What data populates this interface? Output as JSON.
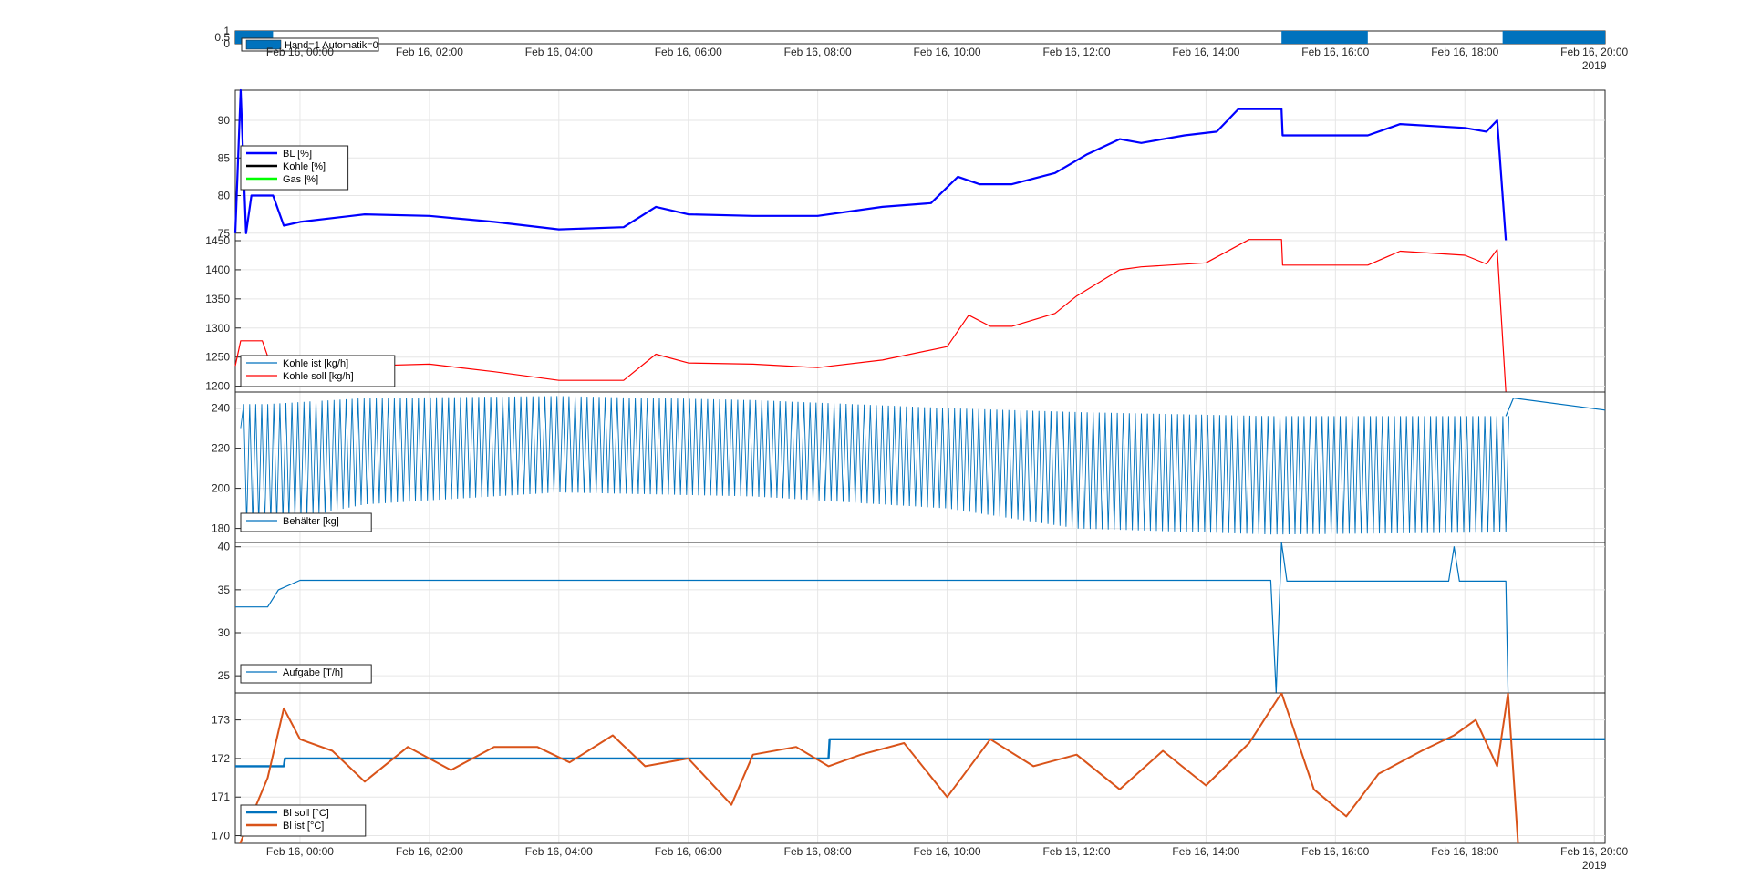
{
  "chart_data": [
    {
      "type": "area",
      "panel": "mode",
      "x_range": [
        "Feb 15, 23:00",
        "Feb 16, 20:10"
      ],
      "ylim": [
        0,
        1
      ],
      "y_ticks": [
        0,
        0.5,
        1
      ],
      "y_tick_labels": [
        "0",
        "0.5",
        "1"
      ],
      "x_tick_labels": [
        "Feb 16, 00:00",
        "Feb 16, 02:00",
        "Feb 16, 04:00",
        "Feb 16, 06:00",
        "Feb 16, 08:00",
        "Feb 16, 10:00",
        "Feb 16, 12:00",
        "Feb 16, 14:00",
        "Feb 16, 16:00",
        "Feb 16, 18:00",
        "Feb 16, 20:00"
      ],
      "x_year": "2019",
      "legend_location": "top-left",
      "series": [
        {
          "name": "Hand=1 Automatik=0",
          "color": "#0072BD",
          "on_intervals": [
            [
              "Feb 15, 23:00",
              "Feb 15, 23:35"
            ],
            [
              "Feb 16, 15:10",
              "Feb 16, 16:30"
            ],
            [
              "Feb 16, 18:35",
              "Feb 16, 20:10"
            ]
          ]
        }
      ]
    },
    {
      "type": "line",
      "panel": "percent",
      "ylim": [
        74,
        94
      ],
      "y_ticks": [
        75,
        80,
        85,
        90
      ],
      "grid": true,
      "legend_location": "left",
      "series": [
        {
          "name": "BL [%]",
          "color": "#0000FF",
          "points": [
            [
              "Feb 15, 23:00",
              75
            ],
            [
              "Feb 15, 23:05",
              94
            ],
            [
              "Feb 15, 23:10",
              75
            ],
            [
              "Feb 15, 23:15",
              80
            ],
            [
              "Feb 15, 23:35",
              80
            ],
            [
              "Feb 15, 23:45",
              76
            ],
            [
              "Feb 16, 00:00",
              76.5
            ],
            [
              "Feb 16, 01:00",
              77.5
            ],
            [
              "Feb 16, 02:00",
              77.3
            ],
            [
              "Feb 16, 03:00",
              76.5
            ],
            [
              "Feb 16, 04:00",
              75.5
            ],
            [
              "Feb 16, 05:00",
              75.8
            ],
            [
              "Feb 16, 05:30",
              78.5
            ],
            [
              "Feb 16, 06:00",
              77.5
            ],
            [
              "Feb 16, 07:00",
              77.3
            ],
            [
              "Feb 16, 08:00",
              77.3
            ],
            [
              "Feb 16, 09:00",
              78.5
            ],
            [
              "Feb 16, 09:45",
              79.0
            ],
            [
              "Feb 16, 10:10",
              82.5
            ],
            [
              "Feb 16, 10:30",
              81.5
            ],
            [
              "Feb 16, 11:00",
              81.5
            ],
            [
              "Feb 16, 11:40",
              83
            ],
            [
              "Feb 16, 12:10",
              85.5
            ],
            [
              "Feb 16, 12:40",
              87.5
            ],
            [
              "Feb 16, 13:00",
              87.0
            ],
            [
              "Feb 16, 13:40",
              88.0
            ],
            [
              "Feb 16, 14:10",
              88.5
            ],
            [
              "Feb 16, 14:30",
              91.5
            ],
            [
              "Feb 16, 15:10",
              91.5
            ],
            [
              "Feb 16, 15:11",
              88.0
            ],
            [
              "Feb 16, 16:30",
              88.0
            ],
            [
              "Feb 16, 17:00",
              89.5
            ],
            [
              "Feb 16, 18:00",
              89.0
            ],
            [
              "Feb 16, 18:20",
              88.5
            ],
            [
              "Feb 16, 18:30",
              90.0
            ],
            [
              "Feb 16, 18:38",
              74
            ]
          ]
        },
        {
          "name": "Kohle [%]",
          "color": "#000000",
          "points": []
        },
        {
          "name": "Gas [%]",
          "color": "#00FF00",
          "points": []
        }
      ]
    },
    {
      "type": "line",
      "panel": "kohle",
      "ylim": [
        1190,
        1450
      ],
      "y_ticks": [
        1200,
        1250,
        1300,
        1350,
        1400,
        1450
      ],
      "grid": true,
      "legend_location": "bottom-left",
      "series": [
        {
          "name": "Kohle ist [kg/h]",
          "color": "#0072BD",
          "points": []
        },
        {
          "name": "Kohle soll [kg/h]",
          "color": "#FF0000",
          "points": [
            [
              "Feb 15, 23:00",
              1235
            ],
            [
              "Feb 15, 23:05",
              1278
            ],
            [
              "Feb 15, 23:25",
              1278
            ],
            [
              "Feb 15, 23:35",
              1225
            ],
            [
              "Feb 16, 00:00",
              1228
            ],
            [
              "Feb 16, 00:30",
              1242
            ],
            [
              "Feb 16, 01:00",
              1235
            ],
            [
              "Feb 16, 02:00",
              1238
            ],
            [
              "Feb 16, 03:00",
              1225
            ],
            [
              "Feb 16, 04:00",
              1210
            ],
            [
              "Feb 16, 05:00",
              1210
            ],
            [
              "Feb 16, 05:30",
              1255
            ],
            [
              "Feb 16, 06:00",
              1240
            ],
            [
              "Feb 16, 07:00",
              1238
            ],
            [
              "Feb 16, 08:00",
              1232
            ],
            [
              "Feb 16, 09:00",
              1245
            ],
            [
              "Feb 16, 10:00",
              1268
            ],
            [
              "Feb 16, 10:20",
              1322
            ],
            [
              "Feb 16, 10:40",
              1303
            ],
            [
              "Feb 16, 11:00",
              1303
            ],
            [
              "Feb 16, 11:40",
              1325
            ],
            [
              "Feb 16, 12:00",
              1355
            ],
            [
              "Feb 16, 12:40",
              1400
            ],
            [
              "Feb 16, 13:00",
              1405
            ],
            [
              "Feb 16, 14:00",
              1412
            ],
            [
              "Feb 16, 14:40",
              1452
            ],
            [
              "Feb 16, 15:10",
              1452
            ],
            [
              "Feb 16, 15:11",
              1408
            ],
            [
              "Feb 16, 16:30",
              1408
            ],
            [
              "Feb 16, 17:00",
              1432
            ],
            [
              "Feb 16, 18:00",
              1425
            ],
            [
              "Feb 16, 18:20",
              1410
            ],
            [
              "Feb 16, 18:30",
              1435
            ],
            [
              "Feb 16, 18:38",
              1190
            ]
          ]
        }
      ]
    },
    {
      "type": "line",
      "panel": "behaelter",
      "ylim": [
        173,
        248
      ],
      "y_ticks": [
        180,
        200,
        220,
        240
      ],
      "grid": true,
      "legend_location": "bottom-left",
      "series": [
        {
          "name": "Behälter [kg]",
          "color": "#0072BD",
          "oscillation_envelope": [
            [
              "Feb 15, 23:30",
              182,
              242
            ],
            [
              "Feb 16, 01:00",
              192,
              245
            ],
            [
              "Feb 16, 04:00",
              198,
              246
            ],
            [
              "Feb 16, 07:00",
              196,
              244
            ],
            [
              "Feb 16, 10:00",
              190,
              240
            ],
            [
              "Feb 16, 12:00",
              180,
              238
            ],
            [
              "Feb 16, 15:00",
              177,
              236
            ],
            [
              "Feb 16, 18:30",
              178,
              236
            ]
          ],
          "tail": [
            [
              "Feb 16, 18:38",
              236
            ],
            [
              "Feb 16, 18:45",
              245
            ],
            [
              "Feb 16, 20:10",
              239
            ]
          ]
        }
      ]
    },
    {
      "type": "line",
      "panel": "aufgabe",
      "ylim": [
        23,
        40.5
      ],
      "y_ticks": [
        25,
        30,
        35,
        40
      ],
      "grid": true,
      "legend_location": "bottom-left",
      "series": [
        {
          "name": "Aufgabe [T/h]",
          "color": "#0072BD",
          "points": [
            [
              "Feb 15, 23:00",
              33
            ],
            [
              "Feb 15, 23:30",
              33
            ],
            [
              "Feb 15, 23:40",
              35
            ],
            [
              "Feb 16, 00:00",
              36.1
            ],
            [
              "Feb 16, 15:00",
              36.1
            ],
            [
              "Feb 16, 15:05",
              23
            ],
            [
              "Feb 16, 15:10",
              40.5
            ],
            [
              "Feb 16, 15:15",
              36.0
            ],
            [
              "Feb 16, 17:45",
              36.0
            ],
            [
              "Feb 16, 17:50",
              40
            ],
            [
              "Feb 16, 17:55",
              36.0
            ],
            [
              "Feb 16, 18:38",
              36.0
            ],
            [
              "Feb 16, 18:40",
              23
            ]
          ]
        }
      ]
    },
    {
      "type": "line",
      "panel": "bl_temp",
      "ylim": [
        169.8,
        173.7
      ],
      "y_ticks": [
        170,
        171,
        172,
        173
      ],
      "grid": true,
      "legend_location": "bottom-left",
      "series": [
        {
          "name": "Bl soll [°C]",
          "color": "#0072BD",
          "points": [
            [
              "Feb 15, 23:00",
              171.8
            ],
            [
              "Feb 15, 23:45",
              171.8
            ],
            [
              "Feb 15, 23:46",
              172.0
            ],
            [
              "Feb 16, 08:10",
              172.0
            ],
            [
              "Feb 16, 08:11",
              172.5
            ],
            [
              "Feb 16, 20:10",
              172.5
            ]
          ]
        },
        {
          "name": "Bl ist [°C]",
          "color": "#D95319",
          "points": [
            [
              "Feb 15, 23:00",
              169.5
            ],
            [
              "Feb 15, 23:30",
              171.5
            ],
            [
              "Feb 15, 23:45",
              173.3
            ],
            [
              "Feb 16, 00:00",
              172.5
            ],
            [
              "Feb 16, 00:30",
              172.2
            ],
            [
              "Feb 16, 01:00",
              171.4
            ],
            [
              "Feb 16, 01:40",
              172.3
            ],
            [
              "Feb 16, 02:20",
              171.7
            ],
            [
              "Feb 16, 03:00",
              172.3
            ],
            [
              "Feb 16, 03:40",
              172.3
            ],
            [
              "Feb 16, 04:10",
              171.9
            ],
            [
              "Feb 16, 04:50",
              172.6
            ],
            [
              "Feb 16, 05:20",
              171.8
            ],
            [
              "Feb 16, 06:00",
              172.0
            ],
            [
              "Feb 16, 06:40",
              170.8
            ],
            [
              "Feb 16, 07:00",
              172.1
            ],
            [
              "Feb 16, 07:40",
              172.3
            ],
            [
              "Feb 16, 08:10",
              171.8
            ],
            [
              "Feb 16, 08:40",
              172.1
            ],
            [
              "Feb 16, 09:20",
              172.4
            ],
            [
              "Feb 16, 10:00",
              171.0
            ],
            [
              "Feb 16, 10:40",
              172.5
            ],
            [
              "Feb 16, 11:20",
              171.8
            ],
            [
              "Feb 16, 12:00",
              172.1
            ],
            [
              "Feb 16, 12:40",
              171.2
            ],
            [
              "Feb 16, 13:20",
              172.2
            ],
            [
              "Feb 16, 14:00",
              171.3
            ],
            [
              "Feb 16, 14:40",
              172.4
            ],
            [
              "Feb 16, 15:10",
              173.7
            ],
            [
              "Feb 16, 15:40",
              171.2
            ],
            [
              "Feb 16, 16:10",
              170.5
            ],
            [
              "Feb 16, 16:40",
              171.6
            ],
            [
              "Feb 16, 17:20",
              172.2
            ],
            [
              "Feb 16, 17:50",
              172.6
            ],
            [
              "Feb 16, 18:10",
              173.0
            ],
            [
              "Feb 16, 18:30",
              171.8
            ],
            [
              "Feb 16, 18:40",
              173.7
            ],
            [
              "Feb 16, 18:50",
              169.5
            ]
          ]
        }
      ]
    }
  ]
}
